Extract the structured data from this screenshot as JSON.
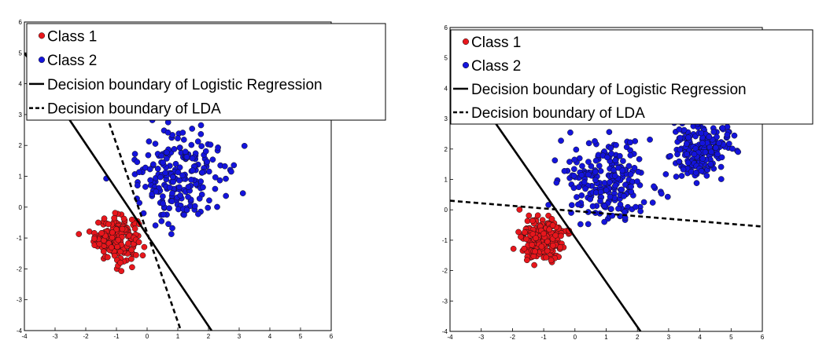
{
  "chart_data": [
    {
      "type": "scatter",
      "title": "",
      "xlabel": "",
      "ylabel": "",
      "xlim": [
        -4,
        6
      ],
      "ylim": [
        -4,
        6
      ],
      "xticks": [
        "-4",
        "-3",
        "-2",
        "-1",
        "0",
        "1",
        "2",
        "3",
        "4",
        "5",
        "6"
      ],
      "yticks": [
        "-4",
        "-3",
        "-2",
        "-1",
        "0",
        "1",
        "2",
        "3",
        "4",
        "5",
        "6"
      ],
      "grid": false,
      "legend_position": "top-left",
      "series": [
        {
          "name": "Class 1",
          "kind": "points",
          "color": "#e8161c",
          "clusters": [
            {
              "center": [
                -1.0,
                -1.0
              ],
              "spread": 0.35,
              "count": 200
            }
          ]
        },
        {
          "name": "Class 2",
          "kind": "points",
          "color": "#1414dc",
          "clusters": [
            {
              "center": [
                1.0,
                1.0
              ],
              "spread": 0.75,
              "count": 220
            }
          ]
        },
        {
          "name": "Decision boundary of Logistic Regression",
          "kind": "line",
          "style": "solid",
          "x": [
            -4.0,
            2.1
          ],
          "y": [
            5.0,
            -4.0
          ]
        },
        {
          "name": "Decision boundary of LDA",
          "kind": "line",
          "style": "dashed",
          "x": [
            -1.4,
            1.1
          ],
          "y": [
            3.2,
            -4.0
          ]
        }
      ]
    },
    {
      "type": "scatter",
      "title": "",
      "xlabel": "",
      "ylabel": "",
      "xlim": [
        -4,
        6
      ],
      "ylim": [
        -4,
        6
      ],
      "xticks": [
        "-4",
        "-3",
        "-2",
        "-1",
        "0",
        "1",
        "2",
        "3",
        "4",
        "5",
        "6"
      ],
      "yticks": [
        "-4",
        "-3",
        "-2",
        "-1",
        "0",
        "1",
        "2",
        "3",
        "4",
        "5",
        "6"
      ],
      "grid": false,
      "legend_position": "top-left",
      "series": [
        {
          "name": "Class 1",
          "kind": "points",
          "color": "#e8161c",
          "clusters": [
            {
              "center": [
                -1.0,
                -1.0
              ],
              "spread": 0.35,
              "count": 200
            }
          ]
        },
        {
          "name": "Class 2",
          "kind": "points",
          "color": "#1414dc",
          "clusters": [
            {
              "center": [
                1.0,
                1.0
              ],
              "spread": 0.7,
              "count": 220
            },
            {
              "center": [
                4.0,
                2.0
              ],
              "spread": 0.45,
              "count": 200
            }
          ]
        },
        {
          "name": "Decision boundary of Logistic Regression",
          "kind": "line",
          "style": "solid",
          "x": [
            -4.0,
            2.1
          ],
          "y": [
            5.0,
            -4.0
          ]
        },
        {
          "name": "Decision boundary of LDA",
          "kind": "line",
          "style": "dashed",
          "x": [
            -4.0,
            6.0
          ],
          "y": [
            0.3,
            -0.55
          ]
        }
      ]
    }
  ]
}
